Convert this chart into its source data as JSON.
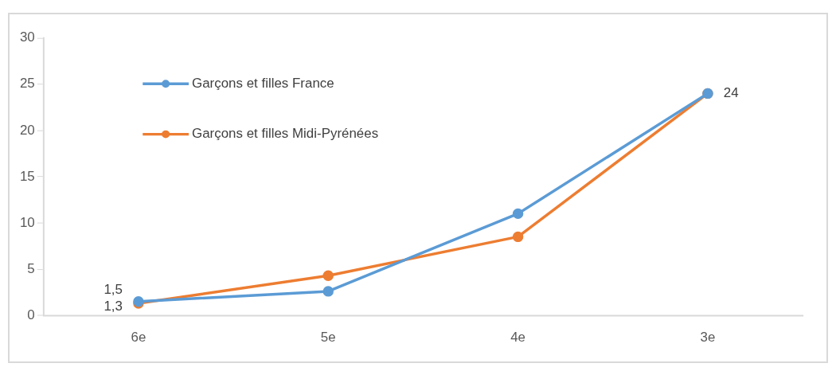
{
  "chart_data": {
    "type": "line",
    "categories": [
      "6e",
      "5e",
      "4e",
      "3e"
    ],
    "series": [
      {
        "name": "Garçons et filles France",
        "color": "#5b9bd5",
        "values": [
          1.5,
          2.6,
          11,
          24
        ],
        "value_labels": [
          "1,5",
          null,
          null,
          null
        ]
      },
      {
        "name": "Garçons et filles Midi-Pyrénées",
        "color": "#ed7d31",
        "values": [
          1.3,
          4.3,
          8.5,
          24
        ],
        "value_labels": [
          "1,3",
          null,
          null,
          "24"
        ]
      }
    ],
    "ylim": [
      0,
      30
    ],
    "yticks": [
      0,
      5,
      10,
      15,
      20,
      25,
      30
    ],
    "grid": false,
    "legend": "top left",
    "marker": "circle",
    "line_style": "solid"
  }
}
